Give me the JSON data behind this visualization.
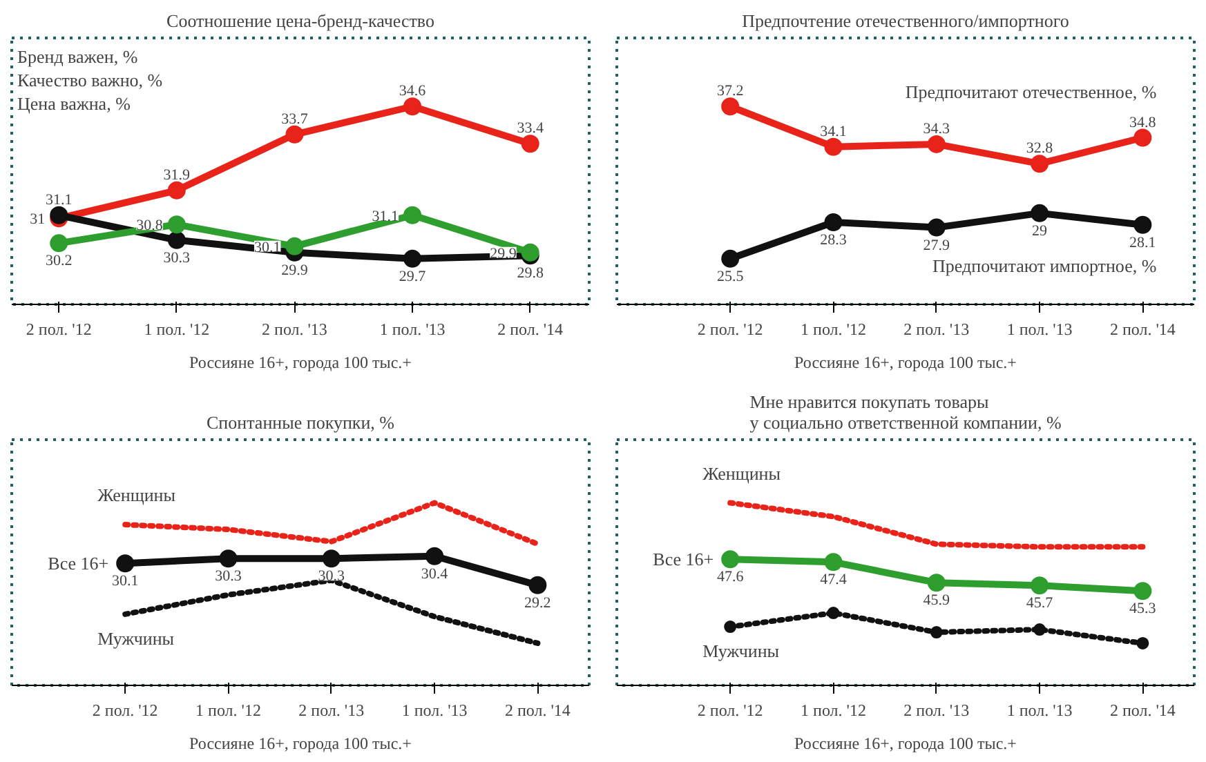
{
  "chart_data": [
    {
      "type": "line",
      "title": "Соотношение цена-бренд-качество",
      "categories": [
        "2 пол. '12",
        "1 пол. '12",
        "2 пол. '13",
        "1 пол. '13",
        "2 пол. '14"
      ],
      "tick_labels": "x",
      "grid": false,
      "data_labels": true,
      "annotations": [
        "Бренд важен, %",
        "Качество важно, %",
        "Цена важна, %",
        "Россияне 16+, города 100 тыс.+"
      ],
      "series": [
        {
          "color": "#e8231a",
          "values": [
            31,
            31.9,
            33.7,
            34.6,
            33.4
          ],
          "marker": "circle",
          "line_style": "solid"
        },
        {
          "color": "#111111",
          "values": [
            31.1,
            30.3,
            29.9,
            29.7,
            29.8
          ],
          "marker": "circle",
          "line_style": "solid"
        },
        {
          "color": "#2e9e2e",
          "values": [
            30.2,
            30.8,
            30.1,
            31.1,
            29.9
          ],
          "marker": "circle",
          "line_style": "solid"
        }
      ]
    },
    {
      "type": "line",
      "title": "Предпочтение отечественного/импортного",
      "categories": [
        "2 пол. '12",
        "1 пол. '12",
        "2 пол. '13",
        "1 пол. '13",
        "2 пол. '14"
      ],
      "tick_labels": "x",
      "grid": false,
      "data_labels": true,
      "annotations": [
        "Россияне 16+, города 100 тыс.+"
      ],
      "series": [
        {
          "name": "Предпочитают отечественное, %",
          "color": "#e8231a",
          "values": [
            37.2,
            34.1,
            34.3,
            32.8,
            34.8
          ],
          "marker": "circle",
          "line_style": "solid"
        },
        {
          "name": "Предпочитают импортное, %",
          "color": "#111111",
          "values": [
            25.5,
            28.3,
            27.9,
            29,
            28.1
          ],
          "marker": "circle",
          "line_style": "solid"
        }
      ]
    },
    {
      "type": "line",
      "title": "Спонтанные покупки, %",
      "categories": [
        "2 пол. '12",
        "1 пол. '12",
        "2 пол. '13",
        "1 пол. '13",
        "2 пол. '14"
      ],
      "tick_labels": "x",
      "grid": false,
      "annotations": [
        "Россияне 16+, города 100 тыс.+"
      ],
      "series": [
        {
          "name": "Женщины",
          "color": "#e8231a",
          "values": [
            31.7,
            31.5,
            31.0,
            32.6,
            30.9
          ],
          "marker": "none",
          "line_style": "dotted"
        },
        {
          "name": "Все 16+",
          "color": "#111111",
          "values": [
            30.1,
            30.3,
            30.3,
            30.4,
            29.2
          ],
          "value_labels": [
            "30.1",
            "30.3",
            "30.3",
            "30.4",
            "29.2"
          ],
          "marker": "circle",
          "line_style": "solid"
        },
        {
          "name": "Мужчины",
          "color": "#111111",
          "values": [
            28.0,
            28.8,
            29.4,
            27.9,
            26.8
          ],
          "marker": "none",
          "line_style": "dotted"
        }
      ]
    },
    {
      "type": "line",
      "title": "Мне нравится покупать товары\nу социально ответственной компании, %",
      "categories": [
        "2 пол. '12",
        "1 пол. '12",
        "2 пол. '13",
        "1 пол. '13",
        "2 пол. '14"
      ],
      "tick_labels": "x",
      "grid": false,
      "annotations": [
        "Россияне 16+, города 100 тыс.+"
      ],
      "series": [
        {
          "name": "Женщины",
          "color": "#e8231a",
          "values": [
            51.7,
            50.7,
            48.7,
            48.5,
            48.5
          ],
          "marker": "none",
          "line_style": "dotted"
        },
        {
          "name": "Все 16+",
          "color": "#2e9e2e",
          "values": [
            47.6,
            47.4,
            45.9,
            45.7,
            45.3
          ],
          "value_labels": [
            "47.6",
            "47.4",
            "45.9",
            "45.7",
            "45.3"
          ],
          "marker": "circle",
          "line_style": "solid"
        },
        {
          "name": "Мужчины",
          "color": "#111111",
          "values": [
            42.7,
            43.7,
            42.3,
            42.5,
            41.5
          ],
          "marker": "circle",
          "line_style": "dotted"
        }
      ]
    }
  ]
}
